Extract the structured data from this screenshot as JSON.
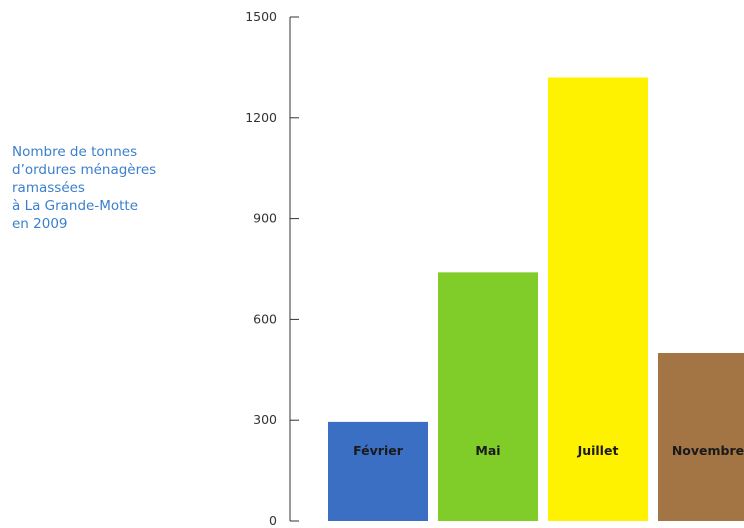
{
  "chart_data": {
    "type": "bar",
    "title_lines": [
      "Nombre de tonnes",
      "d’ordures ménagères",
      "ramassées",
      "à La Grande-Motte",
      "en 2009"
    ],
    "categories": [
      "Février",
      "Mai",
      "Juillet",
      "Novembre"
    ],
    "values": [
      295,
      740,
      1320,
      500
    ],
    "colors": [
      "#3a6fc4",
      "#80cc28",
      "#fff200",
      "#a37545"
    ],
    "ylim": [
      0,
      1500
    ],
    "yticks": [
      0,
      300,
      600,
      900,
      1200,
      1500
    ],
    "ytick_labels": [
      "0",
      "300",
      "600",
      "900",
      "1200",
      "1500"
    ],
    "grid": false,
    "legend": "none",
    "bar_label_position": "inside"
  }
}
